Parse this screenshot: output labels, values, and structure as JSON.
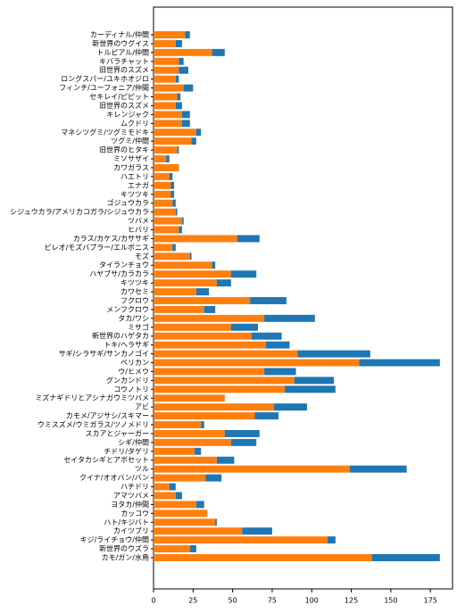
{
  "chart_data": {
    "type": "barh_stacked",
    "categories": [
      "カーディナル/仲間",
      "新世界のウグイス",
      "トルピアル/仲間",
      "キバラチャット",
      "旧世界のスズメ",
      "ロングスパー/ユキホオジロ",
      "フィンチ/ユーフォニア/仲間",
      "セキレイ/ピピット",
      "旧世界のスズメ",
      "キレンジャク",
      "ムクドリ",
      "マネシツグミ/ツグミモドキ",
      "ツグミ/仲間",
      "旧世界のヒタキ",
      "ミソサザイ",
      "カワガラス",
      "ハエトリ",
      "エナガ",
      "キツツキ",
      "ゴジュウカラ",
      "シジュウカラ/アメリカコガラ/シジュウカラ",
      "ツバメ",
      "ヒバリ",
      "カラス/カケス/カササギ",
      "ビレオ/モズバブラー/エルボニス",
      "モズ",
      "タイランチョウ",
      "ハヤブサ/カラカラ",
      "キツツキ",
      "カワセミ",
      "フクロウ",
      "メンフクロウ",
      "タカ/ワシ",
      "ミサゴ",
      "新世界のハゲタカ",
      "トキ/ヘラサギ",
      "サギ/シラサギ/サンカノゴイ",
      "ペリカン",
      "ウ/ヒメウ",
      "グンカンドリ",
      "コウノトリ",
      "ミズナギドリとアシナガウミツバメ",
      "アビ",
      "カモメ/アジサシ/スキマー",
      "ウミスズメ/ウミガラス/ツノメドリ",
      "スカアとジャーガー",
      "シギ/仲間",
      "チドリ/タゲリ",
      "セイタカシギとアボセット",
      "ツル",
      "クイナ/オオバン/バン",
      "ハチドリ",
      "アマツバメ",
      "ヨタカ/仲間",
      "カッコウ",
      "ハト/キジバト",
      "カイツブリ",
      "キジ/ライチョウ/仲間",
      "新世界のウズラ",
      "カモ/ガン/水鳥"
    ],
    "series": [
      {
        "color": "#ff7f0e",
        "values": [
          20,
          14,
          37,
          16,
          16,
          14,
          19,
          15,
          14,
          18,
          18,
          27,
          24,
          15,
          8,
          16,
          10,
          11,
          11,
          12,
          14,
          18,
          16,
          53,
          12,
          23,
          37,
          49,
          40,
          27,
          61,
          32,
          70,
          49,
          62,
          71,
          91,
          130,
          70,
          89,
          83,
          45,
          76,
          64,
          30,
          45,
          49,
          26,
          40,
          124,
          33,
          10,
          14,
          27,
          34,
          39,
          56,
          110,
          23,
          138
        ]
      },
      {
        "color": "#1f77b4",
        "values": [
          3,
          4,
          8,
          3,
          6,
          2,
          6,
          2,
          4,
          5,
          5,
          3,
          3,
          1,
          2,
          0,
          2,
          2,
          2,
          2,
          1,
          1,
          2,
          14,
          2,
          1,
          2,
          16,
          9,
          8,
          23,
          7,
          32,
          17,
          19,
          15,
          46,
          51,
          20,
          25,
          32,
          0,
          21,
          15,
          2,
          22,
          16,
          4,
          11,
          36,
          10,
          4,
          4,
          5,
          0,
          1,
          19,
          5,
          4,
          43
        ]
      }
    ],
    "xlim": [
      0,
      189
    ],
    "xticks": [
      0,
      25,
      50,
      75,
      100,
      125,
      150,
      175
    ]
  }
}
